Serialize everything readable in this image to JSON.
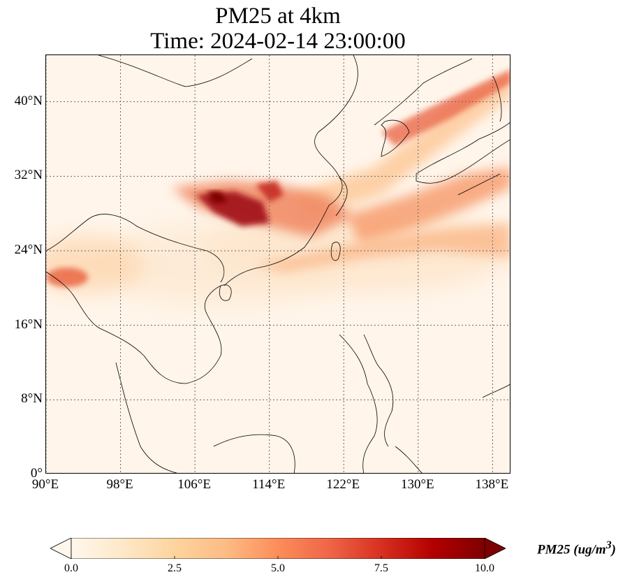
{
  "title": {
    "line1": "PM25 at 4km",
    "line2": "Time: 2024-02-14 23:00:00"
  },
  "map": {
    "extent": {
      "lon_min": 90,
      "lon_max": 140,
      "lat_min": 0,
      "lat_max": 45
    },
    "gridlines": "dotted"
  },
  "axes": {
    "lat_ticks": [
      {
        "label": "40°N",
        "value": 40
      },
      {
        "label": "32°N",
        "value": 32
      },
      {
        "label": "24°N",
        "value": 24
      },
      {
        "label": "16°N",
        "value": 16
      },
      {
        "label": "8°N",
        "value": 8
      },
      {
        "label": "0°",
        "value": 0
      }
    ],
    "lon_ticks": [
      {
        "label": "90°E",
        "value": 90
      },
      {
        "label": "98°E",
        "value": 98
      },
      {
        "label": "106°E",
        "value": 106
      },
      {
        "label": "114°E",
        "value": 114
      },
      {
        "label": "122°E",
        "value": 122
      },
      {
        "label": "130°E",
        "value": 130
      },
      {
        "label": "138°E",
        "value": 138
      }
    ]
  },
  "colorbar": {
    "colormap": "OrRd",
    "colors": [
      "#fff7ec",
      "#fee8c8",
      "#fdd49e",
      "#fdbb84",
      "#fc8d59",
      "#ef6548",
      "#d7301f",
      "#b30000",
      "#7f0000"
    ],
    "min": 0.0,
    "max": 10.0,
    "extend": "both",
    "ticks": [
      "0.0",
      "2.5",
      "5.0",
      "7.5",
      "10.0"
    ],
    "tick_values": [
      0.0,
      2.5,
      5.0,
      7.5,
      10.0
    ],
    "label_text": "PM25 (ug/m",
    "label_sup": "3",
    "label_close": ")"
  }
}
